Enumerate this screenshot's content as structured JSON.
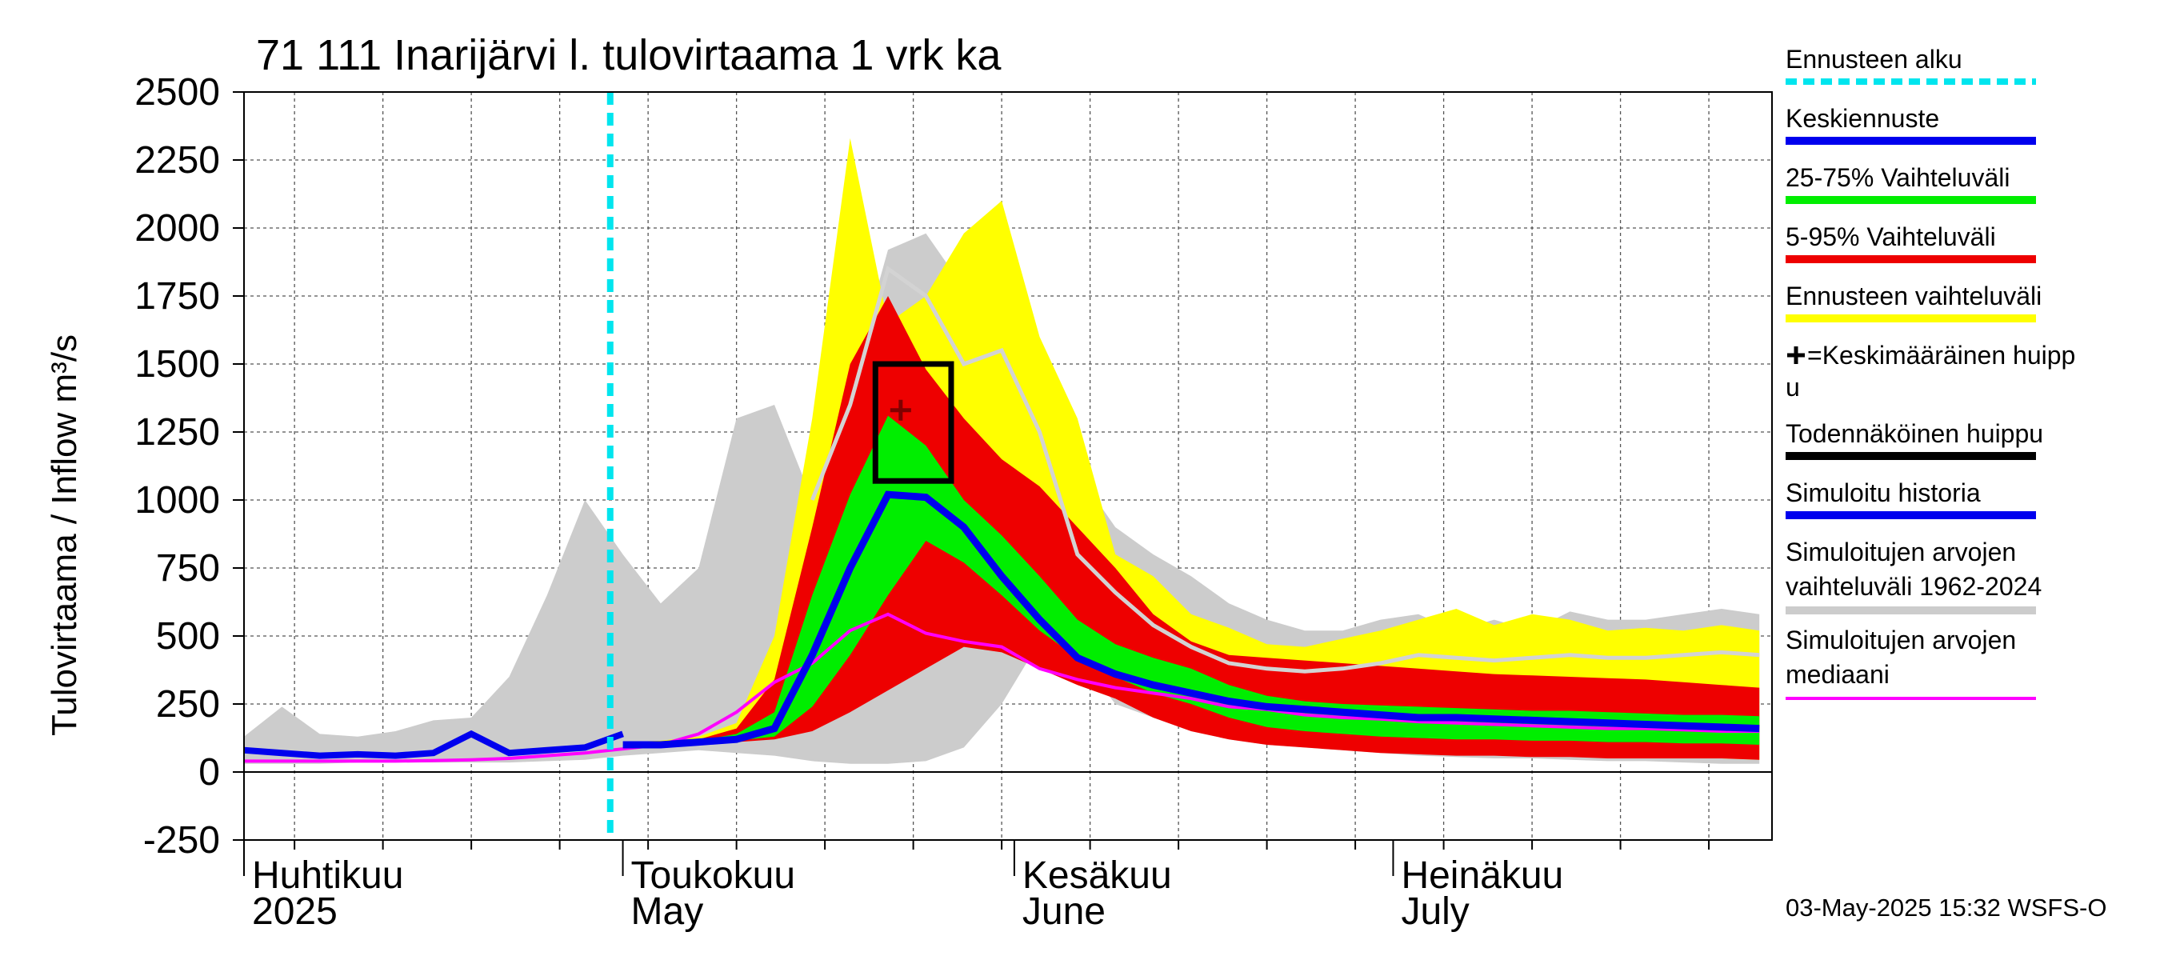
{
  "chart_data": {
    "type": "area",
    "title": "71 111 Inarijärvi l. tulovirtaama 1 vrk ka",
    "ylabel": "Tulovirtaama / Inflow    m³/s",
    "ylim": [
      -250,
      2500
    ],
    "xlim": [
      "2025-04-01",
      "2025-07-31"
    ],
    "yticks": [
      "2500",
      "2250",
      "2000",
      "1750",
      "1500",
      "1250",
      "1000",
      "750",
      "500",
      "250",
      "0",
      "-250"
    ],
    "months": [
      {
        "fi": "Huhtikuu",
        "en": "2025",
        "date": "2025-04-01"
      },
      {
        "fi": "Toukokuu",
        "en": "May",
        "date": "2025-05-01"
      },
      {
        "fi": "Kesäkuu",
        "en": "June",
        "date": "2025-06-01"
      },
      {
        "fi": "Heinäkuu",
        "en": "July",
        "date": "2025-07-01"
      }
    ],
    "forecast_start": "2025-04-30",
    "colors": {
      "forecast_start": "#00e5ee",
      "mean_forecast": "#0000ee",
      "range_25_75": "#00ee00",
      "range_5_95": "#ee0000",
      "forecast_range": "#ffff00",
      "mean_peak": "#000000",
      "probable_peak": "#000000",
      "simulated_history": "#0000ee",
      "sim_range": "#cccccc",
      "sim_median": "#ff00ff",
      "sim_max_line": "#d3d3d3"
    },
    "dates": [
      "2025-04-01",
      "2025-04-04",
      "2025-04-07",
      "2025-04-10",
      "2025-04-13",
      "2025-04-16",
      "2025-04-19",
      "2025-04-22",
      "2025-04-25",
      "2025-04-28",
      "2025-05-01",
      "2025-05-04",
      "2025-05-07",
      "2025-05-10",
      "2025-05-13",
      "2025-05-16",
      "2025-05-19",
      "2025-05-22",
      "2025-05-25",
      "2025-05-28",
      "2025-05-31",
      "2025-06-03",
      "2025-06-06",
      "2025-06-09",
      "2025-06-12",
      "2025-06-15",
      "2025-06-18",
      "2025-06-21",
      "2025-06-24",
      "2025-06-27",
      "2025-06-30",
      "2025-07-03",
      "2025-07-06",
      "2025-07-09",
      "2025-07-12",
      "2025-07-15",
      "2025-07-18",
      "2025-07-21",
      "2025-07-24",
      "2025-07-27",
      "2025-07-30"
    ],
    "series": [
      {
        "name": "Simuloitujen arvojen vaihteluväli 1962-2024",
        "key": "sim_range",
        "low": [
          30,
          30,
          30,
          35,
          35,
          35,
          35,
          35,
          40,
          45,
          60,
          70,
          80,
          70,
          60,
          40,
          30,
          30,
          40,
          90,
          250,
          480,
          430,
          250,
          200,
          150,
          120,
          100,
          90,
          80,
          70,
          60,
          55,
          50,
          50,
          45,
          40,
          40,
          35,
          30,
          30
        ],
        "high": [
          130,
          240,
          140,
          130,
          150,
          190,
          200,
          350,
          650,
          1000,
          800,
          620,
          750,
          1300,
          1350,
          1000,
          1420,
          1920,
          1980,
          1780,
          1650,
          1450,
          1100,
          900,
          800,
          720,
          620,
          560,
          520,
          520,
          560,
          580,
          520,
          560,
          520,
          590,
          560,
          560,
          580,
          600,
          580
        ]
      },
      {
        "name": "Ennusteen vaihteluväli",
        "key": "forecast_range",
        "low": [
          null,
          null,
          null,
          null,
          null,
          null,
          null,
          null,
          null,
          null,
          100,
          100,
          105,
          110,
          130,
          170,
          240,
          320,
          420,
          520,
          550,
          470,
          380,
          300,
          220,
          180,
          150,
          130,
          110,
          100,
          90,
          80,
          80,
          75,
          70,
          65,
          60,
          55,
          50,
          50,
          45
        ],
        "high": [
          null,
          null,
          null,
          null,
          null,
          null,
          null,
          null,
          null,
          null,
          110,
          115,
          130,
          180,
          500,
          1300,
          2330,
          1650,
          1750,
          1980,
          2100,
          1600,
          1300,
          800,
          720,
          580,
          530,
          470,
          460,
          490,
          520,
          560,
          600,
          540,
          580,
          560,
          520,
          530,
          520,
          540,
          520
        ]
      },
      {
        "name": "5-95% Vaihteluväli",
        "key": "range_5_95",
        "low": [
          null,
          null,
          null,
          null,
          null,
          null,
          null,
          null,
          null,
          null,
          100,
          100,
          105,
          110,
          120,
          150,
          220,
          300,
          380,
          460,
          440,
          380,
          320,
          270,
          200,
          150,
          120,
          100,
          90,
          80,
          70,
          65,
          60,
          60,
          55,
          55,
          50,
          50,
          50,
          50,
          45
        ],
        "high": [
          null,
          null,
          null,
          null,
          null,
          null,
          null,
          null,
          null,
          null,
          100,
          105,
          120,
          160,
          340,
          900,
          1500,
          1750,
          1480,
          1300,
          1150,
          1050,
          900,
          750,
          580,
          480,
          430,
          420,
          410,
          400,
          390,
          380,
          370,
          360,
          355,
          350,
          345,
          340,
          330,
          320,
          310
        ]
      },
      {
        "name": "25-75% Vaihteluväli",
        "key": "range_25_75",
        "low": [
          null,
          null,
          null,
          null,
          null,
          null,
          null,
          null,
          null,
          null,
          100,
          100,
          105,
          115,
          130,
          240,
          430,
          650,
          850,
          770,
          650,
          520,
          420,
          350,
          290,
          250,
          200,
          165,
          150,
          140,
          130,
          125,
          120,
          120,
          115,
          115,
          110,
          110,
          105,
          105,
          100
        ],
        "high": [
          null,
          null,
          null,
          null,
          null,
          null,
          null,
          null,
          null,
          null,
          100,
          105,
          115,
          140,
          220,
          650,
          1020,
          1310,
          1200,
          1000,
          870,
          720,
          560,
          470,
          420,
          380,
          320,
          280,
          260,
          250,
          245,
          240,
          235,
          230,
          225,
          225,
          220,
          215,
          210,
          210,
          205
        ]
      },
      {
        "name": "Keskiennuste",
        "key": "mean_forecast",
        "values": [
          null,
          null,
          null,
          null,
          null,
          null,
          null,
          null,
          null,
          null,
          100,
          100,
          110,
          120,
          160,
          430,
          750,
          1020,
          1010,
          900,
          720,
          560,
          420,
          360,
          320,
          290,
          260,
          240,
          230,
          220,
          210,
          200,
          200,
          195,
          190,
          185,
          180,
          175,
          170,
          165,
          160
        ]
      },
      {
        "name": "Simuloitu historia",
        "key": "simulated_history",
        "values": [
          80,
          70,
          60,
          65,
          60,
          70,
          140,
          70,
          80,
          90,
          140,
          null,
          null,
          null,
          null,
          null,
          null,
          null,
          null,
          null,
          null,
          null,
          null,
          null,
          null,
          null,
          null,
          null,
          null,
          null,
          null,
          null,
          null,
          null,
          null,
          null,
          null,
          null,
          null,
          null,
          null
        ]
      },
      {
        "name": "Simuloitujen arvojen mediaani",
        "key": "sim_median",
        "values": [
          40,
          40,
          40,
          40,
          40,
          42,
          45,
          50,
          60,
          70,
          85,
          100,
          140,
          220,
          330,
          400,
          520,
          580,
          510,
          480,
          460,
          380,
          340,
          310,
          290,
          270,
          240,
          230,
          210,
          200,
          195,
          185,
          180,
          175,
          170,
          165,
          160,
          160,
          155,
          150,
          150
        ]
      },
      {
        "name": "",
        "key": "sim_max_line",
        "values": [
          null,
          null,
          null,
          null,
          null,
          null,
          null,
          null,
          null,
          null,
          null,
          null,
          null,
          null,
          null,
          1000,
          1350,
          1850,
          1750,
          1500,
          1550,
          1250,
          800,
          660,
          540,
          460,
          400,
          380,
          370,
          380,
          400,
          430,
          420,
          410,
          420,
          430,
          420,
          420,
          430,
          440,
          430
        ]
      }
    ],
    "probable_peak": {
      "x0": "2025-05-21",
      "x1": "2025-05-27",
      "y0": 1070,
      "y1": 1500
    },
    "mean_peak": {
      "x": "2025-05-23",
      "y": 1330
    }
  },
  "legend": [
    {
      "label": "Ennusteen alku",
      "color": "#00e5ee",
      "style": "dashed"
    },
    {
      "label": "Keskiennuste",
      "color": "#0000ee",
      "style": "solid"
    },
    {
      "label": "25-75% Vaihteluväli",
      "color": "#00ee00",
      "style": "solid"
    },
    {
      "label": "5-95% Vaihteluväli",
      "color": "#ee0000",
      "style": "solid"
    },
    {
      "label": "Ennusteen vaihteluväli",
      "color": "#ffff00",
      "style": "solid"
    },
    {
      "label": "=Keskimääräinen huipp",
      "label2": "u",
      "color": "",
      "style": "plus"
    },
    {
      "label": "Todennäköinen huippu",
      "color": "#000000",
      "style": "solid"
    },
    {
      "label": "Simuloitu historia",
      "color": "#0000ee",
      "style": "solid"
    },
    {
      "label": "Simuloitujen arvojen",
      "label2": "vaihteluväli 1962-2024",
      "color": "#cccccc",
      "style": "solid"
    },
    {
      "label": "Simuloitujen arvojen",
      "label2": "mediaani",
      "color": "#ff00ff",
      "style": "thin"
    }
  ],
  "timestamp": "03-May-2025 15:32 WSFS-O"
}
